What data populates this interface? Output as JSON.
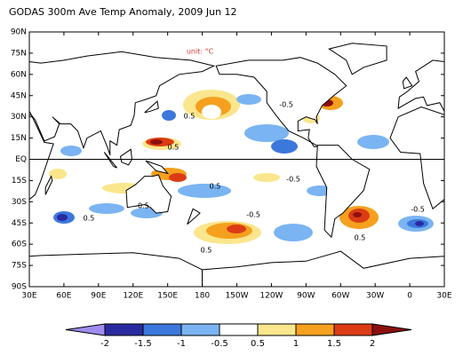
{
  "title": "GODAS 300m Ave Temp Anomaly, 2009 Jun 12",
  "unit_label": "unit: °C",
  "lat_ticks": [
    "90N",
    "75N",
    "60N",
    "45N",
    "30N",
    "15N",
    "EQ",
    "15S",
    "30S",
    "45S",
    "60S",
    "75S",
    "90S"
  ],
  "lon_ticks": [
    "30E",
    "60E",
    "90E",
    "120E",
    "150E",
    "180",
    "150W",
    "120W",
    "90W",
    "60W",
    "30W",
    "0",
    "30E"
  ],
  "contour_labels": [
    0.5,
    -0.5,
    0.5,
    0.5,
    -0.5,
    0.5,
    -0.5,
    0.5,
    -0.5,
    0.5,
    -0.5
  ],
  "colorbar": {
    "ticks": [
      -2,
      -1.5,
      -1,
      -0.5,
      0.5,
      1,
      1.5,
      2
    ],
    "colors": [
      "#a08cf0",
      "#2a2aa0",
      "#3c78dc",
      "#7ab4f2",
      "#ffffff",
      "#fae68c",
      "#f5a01e",
      "#dc3c14",
      "#8c0f0f"
    ]
  }
}
